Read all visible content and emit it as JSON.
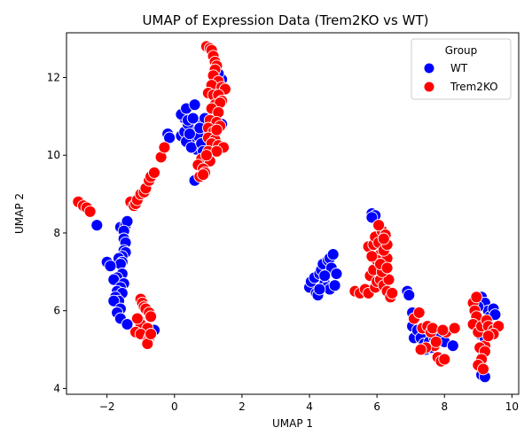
{
  "chart_data": {
    "type": "scatter",
    "title": "UMAP of Expression Data (Trem2KO vs WT)",
    "xlabel": "UMAP 1",
    "ylabel": "UMAP 2",
    "xlim": [
      -3.2,
      10.2
    ],
    "ylim": [
      3.85,
      13.15
    ],
    "xticks": [
      -2,
      0,
      2,
      4,
      6,
      8,
      10
    ],
    "yticks": [
      4,
      6,
      8,
      10,
      12
    ],
    "legend": {
      "title": "Group",
      "position": "top-right"
    },
    "series": [
      {
        "name": "WT",
        "color": "#0000ff",
        "points": [
          [
            -2.3,
            8.2
          ],
          [
            -1.6,
            8.15
          ],
          [
            -1.45,
            8.2
          ],
          [
            -1.4,
            8.3
          ],
          [
            -1.5,
            8.05
          ],
          [
            -1.5,
            7.85
          ],
          [
            -1.45,
            7.75
          ],
          [
            -1.5,
            7.55
          ],
          [
            -1.45,
            7.5
          ],
          [
            -1.55,
            7.4
          ],
          [
            -1.65,
            7.35
          ],
          [
            -1.55,
            7.25
          ],
          [
            -1.6,
            7.2
          ],
          [
            -2.0,
            7.25
          ],
          [
            -1.9,
            7.15
          ],
          [
            -1.55,
            6.95
          ],
          [
            -1.7,
            6.85
          ],
          [
            -1.8,
            6.8
          ],
          [
            -1.5,
            6.7
          ],
          [
            -1.6,
            6.6
          ],
          [
            -1.7,
            6.5
          ],
          [
            -1.55,
            6.45
          ],
          [
            -1.75,
            6.35
          ],
          [
            -1.65,
            6.25
          ],
          [
            -1.8,
            6.25
          ],
          [
            -1.6,
            6.05
          ],
          [
            -1.7,
            5.95
          ],
          [
            -1.6,
            5.8
          ],
          [
            -1.4,
            5.65
          ],
          [
            -0.6,
            5.5
          ],
          [
            0.2,
            10.5
          ],
          [
            0.3,
            10.6
          ],
          [
            -0.2,
            10.55
          ],
          [
            -0.15,
            10.45
          ],
          [
            0.45,
            10.4
          ],
          [
            0.35,
            10.35
          ],
          [
            0.6,
            10.6
          ],
          [
            0.7,
            10.65
          ],
          [
            0.85,
            10.6
          ],
          [
            0.7,
            10.5
          ],
          [
            0.55,
            10.75
          ],
          [
            0.4,
            10.8
          ],
          [
            0.3,
            10.95
          ],
          [
            0.2,
            11.05
          ],
          [
            0.35,
            11.2
          ],
          [
            0.6,
            11.3
          ],
          [
            0.75,
            10.85
          ],
          [
            0.9,
            10.95
          ],
          [
            0.65,
            10.15
          ],
          [
            0.5,
            10.2
          ],
          [
            0.8,
            10.3
          ],
          [
            0.85,
            10.1
          ],
          [
            0.6,
            9.35
          ],
          [
            0.4,
            10.9
          ],
          [
            0.55,
            10.95
          ],
          [
            1.2,
            10.55
          ],
          [
            1.3,
            10.7
          ],
          [
            1.4,
            10.8
          ],
          [
            1.4,
            11.95
          ],
          [
            1.3,
            12.1
          ],
          [
            0.75,
            10.7
          ],
          [
            0.45,
            10.55
          ],
          [
            4.0,
            6.6
          ],
          [
            4.05,
            6.75
          ],
          [
            4.15,
            6.85
          ],
          [
            4.2,
            6.45
          ],
          [
            4.25,
            6.4
          ],
          [
            4.3,
            6.95
          ],
          [
            4.35,
            7.05
          ],
          [
            4.4,
            7.2
          ],
          [
            4.45,
            6.7
          ],
          [
            4.5,
            6.6
          ],
          [
            4.55,
            7.3
          ],
          [
            4.6,
            7.35
          ],
          [
            4.6,
            6.55
          ],
          [
            4.65,
            7.1
          ],
          [
            4.7,
            7.45
          ],
          [
            4.75,
            6.65
          ],
          [
            4.8,
            6.95
          ],
          [
            4.3,
            6.55
          ],
          [
            4.45,
            6.9
          ],
          [
            5.85,
            8.5
          ],
          [
            5.95,
            8.45
          ],
          [
            5.85,
            8.4
          ],
          [
            6.9,
            6.5
          ],
          [
            6.95,
            6.4
          ],
          [
            7.05,
            5.95
          ],
          [
            7.05,
            5.6
          ],
          [
            7.1,
            5.3
          ],
          [
            7.2,
            5.5
          ],
          [
            7.3,
            5.3
          ],
          [
            7.35,
            5.55
          ],
          [
            7.4,
            5.15
          ],
          [
            7.45,
            5.0
          ],
          [
            7.55,
            5.2
          ],
          [
            7.6,
            5.05
          ],
          [
            7.7,
            5.3
          ],
          [
            7.8,
            5.45
          ],
          [
            7.85,
            5.35
          ],
          [
            8.0,
            5.2
          ],
          [
            8.25,
            5.1
          ],
          [
            9.0,
            6.3
          ],
          [
            9.1,
            6.35
          ],
          [
            9.2,
            6.2
          ],
          [
            9.3,
            6.0
          ],
          [
            9.35,
            5.85
          ],
          [
            9.45,
            6.05
          ],
          [
            9.5,
            5.9
          ],
          [
            9.1,
            5.6
          ],
          [
            9.05,
            5.4
          ],
          [
            9.2,
            5.3
          ],
          [
            9.35,
            5.45
          ],
          [
            9.1,
            5.0
          ],
          [
            9.15,
            4.9
          ],
          [
            9.1,
            4.35
          ],
          [
            9.2,
            4.3
          ],
          [
            9.0,
            6.1
          ]
        ]
      },
      {
        "name": "Trem2KO",
        "color": "#ff0000",
        "points": [
          [
            -2.85,
            8.8
          ],
          [
            -2.7,
            8.7
          ],
          [
            -2.6,
            8.65
          ],
          [
            -2.5,
            8.55
          ],
          [
            -1.3,
            8.8
          ],
          [
            -1.2,
            8.7
          ],
          [
            -1.15,
            8.75
          ],
          [
            -1.1,
            8.85
          ],
          [
            -1.0,
            9.0
          ],
          [
            -0.9,
            9.05
          ],
          [
            -0.85,
            9.15
          ],
          [
            -0.75,
            9.35
          ],
          [
            -0.7,
            9.45
          ],
          [
            -0.6,
            9.55
          ],
          [
            -0.4,
            9.95
          ],
          [
            -0.3,
            10.2
          ],
          [
            -1.0,
            6.3
          ],
          [
            -0.95,
            6.2
          ],
          [
            -0.9,
            6.1
          ],
          [
            -0.85,
            6.05
          ],
          [
            -0.75,
            5.95
          ],
          [
            -0.7,
            5.85
          ],
          [
            -1.05,
            5.75
          ],
          [
            -1.0,
            5.65
          ],
          [
            -0.8,
            5.55
          ],
          [
            -1.15,
            5.45
          ],
          [
            -1.0,
            5.4
          ],
          [
            -0.75,
            5.3
          ],
          [
            -0.8,
            5.2
          ],
          [
            -0.8,
            5.15
          ],
          [
            -0.7,
            5.4
          ],
          [
            -1.1,
            5.8
          ],
          [
            0.95,
            12.8
          ],
          [
            1.05,
            12.75
          ],
          [
            1.1,
            12.7
          ],
          [
            1.15,
            12.55
          ],
          [
            1.2,
            12.4
          ],
          [
            1.25,
            12.3
          ],
          [
            1.2,
            12.2
          ],
          [
            1.15,
            12.05
          ],
          [
            1.3,
            11.9
          ],
          [
            1.1,
            11.8
          ],
          [
            1.4,
            11.75
          ],
          [
            1.5,
            11.7
          ],
          [
            1.0,
            11.6
          ],
          [
            1.15,
            11.55
          ],
          [
            1.3,
            11.55
          ],
          [
            1.4,
            11.4
          ],
          [
            1.2,
            11.3
          ],
          [
            1.35,
            11.35
          ],
          [
            1.1,
            11.2
          ],
          [
            1.3,
            11.1
          ],
          [
            1.05,
            10.9
          ],
          [
            1.25,
            10.85
          ],
          [
            1.35,
            10.75
          ],
          [
            1.0,
            10.7
          ],
          [
            1.15,
            10.6
          ],
          [
            1.0,
            10.45
          ],
          [
            1.2,
            10.4
          ],
          [
            1.1,
            10.3
          ],
          [
            1.3,
            10.25
          ],
          [
            1.45,
            10.2
          ],
          [
            1.0,
            10.1
          ],
          [
            1.25,
            10.1
          ],
          [
            0.95,
            9.95
          ],
          [
            0.8,
            9.9
          ],
          [
            1.05,
            9.85
          ],
          [
            0.7,
            9.75
          ],
          [
            0.85,
            9.65
          ],
          [
            0.9,
            9.55
          ],
          [
            0.75,
            9.45
          ],
          [
            0.85,
            9.5
          ],
          [
            0.95,
            10.0
          ],
          [
            1.25,
            10.65
          ],
          [
            5.35,
            6.5
          ],
          [
            5.5,
            6.45
          ],
          [
            5.65,
            6.55
          ],
          [
            5.75,
            6.45
          ],
          [
            5.8,
            6.9
          ],
          [
            5.9,
            7.05
          ],
          [
            5.95,
            6.6
          ],
          [
            6.0,
            6.75
          ],
          [
            6.1,
            6.8
          ],
          [
            6.2,
            6.65
          ],
          [
            6.3,
            6.5
          ],
          [
            6.35,
            6.8
          ],
          [
            6.4,
            6.35
          ],
          [
            6.45,
            6.45
          ],
          [
            5.75,
            7.65
          ],
          [
            5.9,
            7.7
          ],
          [
            5.95,
            7.9
          ],
          [
            6.05,
            7.75
          ],
          [
            6.1,
            7.45
          ],
          [
            6.2,
            7.3
          ],
          [
            6.0,
            7.3
          ],
          [
            6.15,
            7.0
          ],
          [
            6.3,
            7.35
          ],
          [
            6.15,
            8.05
          ],
          [
            6.25,
            7.95
          ],
          [
            6.2,
            7.55
          ],
          [
            6.3,
            7.7
          ],
          [
            6.1,
            7.2
          ],
          [
            5.85,
            7.4
          ],
          [
            6.3,
            7.1
          ],
          [
            6.05,
            8.2
          ],
          [
            6.2,
            7.85
          ],
          [
            7.1,
            5.8
          ],
          [
            7.25,
            5.95
          ],
          [
            7.35,
            5.55
          ],
          [
            7.5,
            5.6
          ],
          [
            7.6,
            5.45
          ],
          [
            7.65,
            5.55
          ],
          [
            7.7,
            5.1
          ],
          [
            7.75,
            5.2
          ],
          [
            7.8,
            4.8
          ],
          [
            7.9,
            4.7
          ],
          [
            8.0,
            4.75
          ],
          [
            8.05,
            5.45
          ],
          [
            7.95,
            5.5
          ],
          [
            8.3,
            5.55
          ],
          [
            7.45,
            5.05
          ],
          [
            7.3,
            5.0
          ],
          [
            8.85,
            6.2
          ],
          [
            8.9,
            6.0
          ],
          [
            8.95,
            5.85
          ],
          [
            8.85,
            5.65
          ],
          [
            9.0,
            5.45
          ],
          [
            9.1,
            5.6
          ],
          [
            9.25,
            5.75
          ],
          [
            9.3,
            5.6
          ],
          [
            9.45,
            5.5
          ],
          [
            9.6,
            5.6
          ],
          [
            9.45,
            5.4
          ],
          [
            9.2,
            5.1
          ],
          [
            9.05,
            5.05
          ],
          [
            9.2,
            4.95
          ],
          [
            9.1,
            4.75
          ],
          [
            9.0,
            4.6
          ],
          [
            9.15,
            4.5
          ],
          [
            9.3,
            5.35
          ],
          [
            8.95,
            6.35
          ]
        ]
      }
    ]
  }
}
